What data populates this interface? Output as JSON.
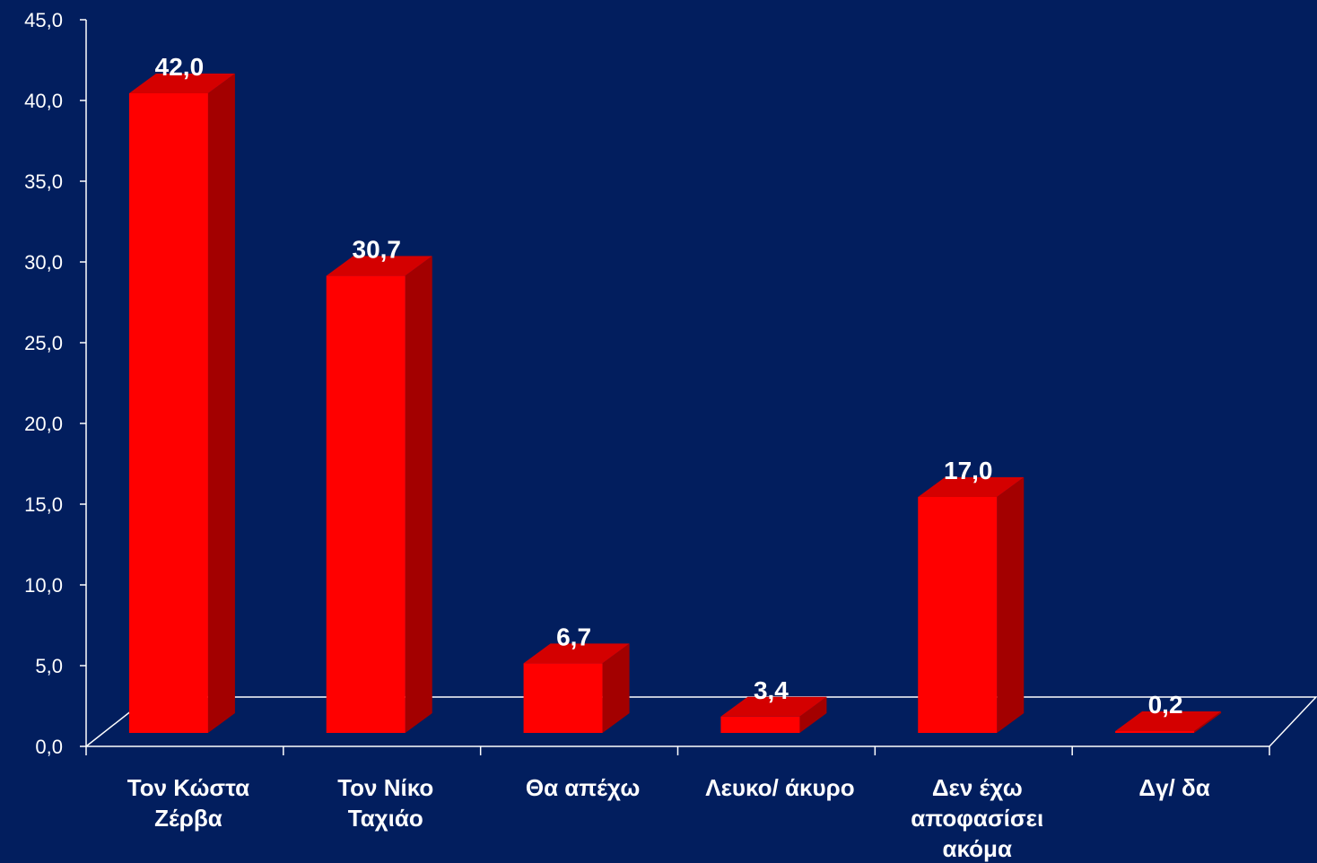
{
  "chart_data": {
    "type": "bar",
    "title": "",
    "xlabel": "",
    "ylabel": "",
    "categories": [
      [
        "Τον Κώστα",
        "Ζέρβα"
      ],
      [
        "Τον Νίκο",
        "Ταχιάο"
      ],
      [
        "Θα απέχω"
      ],
      [
        "Λευκο/ άκυρο"
      ],
      [
        "Δεν έχω",
        "αποφασίσει",
        "ακόμα"
      ],
      [
        "Δγ/ δα"
      ]
    ],
    "values": [
      42.0,
      30.7,
      6.7,
      3.4,
      17.0,
      0.2
    ],
    "value_labels": [
      "42,0",
      "30,7",
      "6,7",
      "3,4",
      "17,0",
      "0,2"
    ],
    "yticks": [
      0,
      5,
      10,
      15,
      20,
      25,
      30,
      35,
      40,
      45
    ],
    "ytick_labels": [
      "0,0",
      "5,0",
      "10,0",
      "15,0",
      "20,0",
      "25,0",
      "30,0",
      "35,0",
      "40,0",
      "45,0"
    ],
    "ylim": [
      0,
      45
    ],
    "grid": false,
    "style": "3d-bar",
    "colors": {
      "background": "#021E5E",
      "bar_front": "#FF0000",
      "bar_side": "#A30000",
      "bar_top": "#D40000",
      "axis": "#FFFFFF",
      "text": "#FFFFFF"
    }
  }
}
